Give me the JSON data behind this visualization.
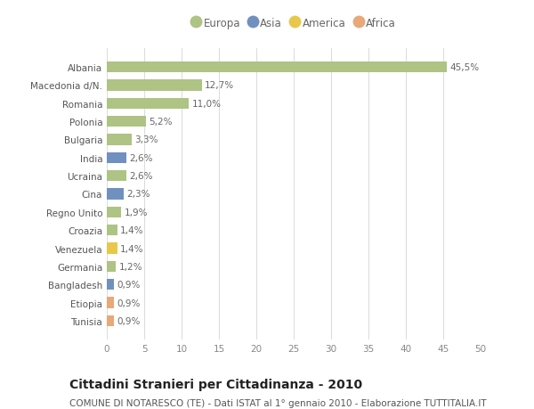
{
  "countries": [
    "Albania",
    "Macedonia d/N.",
    "Romania",
    "Polonia",
    "Bulgaria",
    "India",
    "Ucraina",
    "Cina",
    "Regno Unito",
    "Croazia",
    "Venezuela",
    "Germania",
    "Bangladesh",
    "Etiopia",
    "Tunisia"
  ],
  "values": [
    45.5,
    12.7,
    11.0,
    5.2,
    3.3,
    2.6,
    2.6,
    2.3,
    1.9,
    1.4,
    1.4,
    1.2,
    0.9,
    0.9,
    0.9
  ],
  "labels": [
    "45,5%",
    "12,7%",
    "11,0%",
    "5,2%",
    "3,3%",
    "2,6%",
    "2,6%",
    "2,3%",
    "1,9%",
    "1,4%",
    "1,4%",
    "1,2%",
    "0,9%",
    "0,9%",
    "0,9%"
  ],
  "continents": [
    "Europa",
    "Europa",
    "Europa",
    "Europa",
    "Europa",
    "Asia",
    "Europa",
    "Asia",
    "Europa",
    "Europa",
    "America",
    "Europa",
    "Asia",
    "Africa",
    "Africa"
  ],
  "continent_colors": {
    "Europa": "#aec384",
    "Asia": "#7090c0",
    "America": "#e8c84a",
    "Africa": "#e8a878"
  },
  "legend_order": [
    "Europa",
    "Asia",
    "America",
    "Africa"
  ],
  "xlim": [
    0,
    50
  ],
  "xticks": [
    0,
    5,
    10,
    15,
    20,
    25,
    30,
    35,
    40,
    45,
    50
  ],
  "title": "Cittadini Stranieri per Cittadinanza - 2010",
  "subtitle": "COMUNE DI NOTARESCO (TE) - Dati ISTAT al 1° gennaio 2010 - Elaborazione TUTTITALIA.IT",
  "bg_color": "#ffffff",
  "plot_bg_color": "#f5f5f5",
  "grid_color": "#dddddd",
  "bar_height": 0.6,
  "label_fontsize": 7.5,
  "tick_fontsize": 7.5,
  "title_fontsize": 10,
  "subtitle_fontsize": 7.5,
  "legend_fontsize": 8.5
}
